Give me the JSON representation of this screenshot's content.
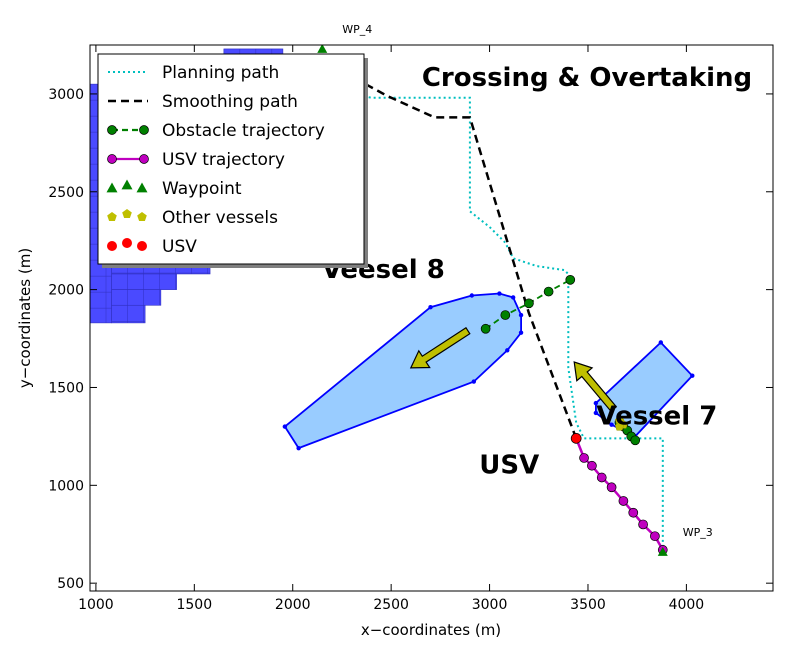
{
  "chart_data": {
    "type": "scatter",
    "title": "Crossing & Overtaking",
    "xlabel": "x−coordinates (m)",
    "ylabel": "y−coordinates (m)",
    "xlim": [
      970,
      4440
    ],
    "ylim": [
      460,
      3250
    ],
    "xticks": [
      1000,
      1500,
      2000,
      2500,
      3000,
      3500,
      4000
    ],
    "yticks": [
      500,
      1000,
      1500,
      2000,
      2500,
      3000
    ],
    "grid": false,
    "legend_position": "top-left",
    "legend": [
      {
        "label": "Planning path",
        "style": "dotted",
        "color": "#00bfbf"
      },
      {
        "label": "Smoothing path",
        "style": "dashed",
        "color": "#000000"
      },
      {
        "label": "Obstacle trajectory",
        "style": "dash-dot-marker",
        "color": "#008000"
      },
      {
        "label": "USV trajectory",
        "style": "line-marker",
        "color": "#bf00bf"
      },
      {
        "label": "Waypoint",
        "style": "triangle",
        "color": "#008000"
      },
      {
        "label": "Other vessels",
        "style": "pentagon",
        "color": "#bfbf00"
      },
      {
        "label": "USV",
        "style": "circle",
        "color": "#ff0000"
      }
    ],
    "colors": {
      "planning": "#00bfbf",
      "smoothing": "#000000",
      "obstacle": "#008000",
      "usv": "#bf00bf",
      "vessel_fill": "#99ccff",
      "vessel_edge": "#0000ff",
      "grid_cells": "#4a4aff",
      "arrow": "#bfbf00"
    },
    "planning_path": [
      [
        3880,
        660
      ],
      [
        3880,
        1240
      ],
      [
        3480,
        1240
      ],
      [
        3440,
        1320
      ],
      [
        3400,
        1600
      ],
      [
        3400,
        2080
      ],
      [
        3380,
        2100
      ],
      [
        3240,
        2120
      ],
      [
        3120,
        2160
      ],
      [
        3080,
        2240
      ],
      [
        3000,
        2320
      ],
      [
        2900,
        2400
      ],
      [
        2900,
        2980
      ],
      [
        2400,
        2980
      ],
      [
        2220,
        3020
      ],
      [
        1980,
        3180
      ]
    ],
    "smoothing_path": [
      [
        3440,
        1240
      ],
      [
        3200,
        1880
      ],
      [
        2900,
        2880
      ],
      [
        2720,
        2880
      ],
      [
        2480,
        2990
      ],
      [
        2260,
        3110
      ],
      [
        2160,
        3200
      ]
    ],
    "obstacle_trajectory": [
      [
        2980,
        1800
      ],
      [
        3080,
        1870
      ],
      [
        3200,
        1930
      ],
      [
        3300,
        1990
      ],
      [
        3410,
        2050
      ]
    ],
    "obstacle_trajectory_2": [
      [
        3660,
        1320
      ],
      [
        3680,
        1300
      ],
      [
        3700,
        1280
      ],
      [
        3720,
        1250
      ],
      [
        3740,
        1230
      ]
    ],
    "usv_trajectory": [
      [
        3880,
        670
      ],
      [
        3840,
        740
      ],
      [
        3780,
        800
      ],
      [
        3730,
        860
      ],
      [
        3680,
        920
      ],
      [
        3620,
        990
      ],
      [
        3570,
        1040
      ],
      [
        3520,
        1100
      ],
      [
        3480,
        1140
      ],
      [
        3440,
        1240
      ]
    ],
    "waypoints": [
      {
        "name": "WP_3",
        "x": 3880,
        "y": 660
      },
      {
        "name": "WP_4",
        "x": 2150,
        "y": 3230
      }
    ],
    "other_vessels": [
      {
        "x": 3660,
        "y": 1330
      },
      {
        "x": 3680,
        "y": 1310
      },
      {
        "x": 3660,
        "y": 1300
      }
    ],
    "usv_position": {
      "x": 3440,
      "y": 1240
    },
    "vessels": [
      {
        "name": "Veesel 8",
        "polygon": [
          [
            1960,
            1300
          ],
          [
            2030,
            1190
          ],
          [
            2920,
            1530
          ],
          [
            3090,
            1690
          ],
          [
            3160,
            1780
          ],
          [
            3160,
            1870
          ],
          [
            3120,
            1960
          ],
          [
            3050,
            1980
          ],
          [
            2910,
            1970
          ],
          [
            2700,
            1910
          ],
          [
            1960,
            1300
          ]
        ],
        "heading": [
          [
            2890,
            1790
          ],
          [
            2600,
            1600
          ]
        ]
      },
      {
        "name": "Vessel 7",
        "polygon": [
          [
            3540,
            1370
          ],
          [
            3620,
            1310
          ],
          [
            3740,
            1250
          ],
          [
            4030,
            1560
          ],
          [
            3870,
            1730
          ],
          [
            3540,
            1420
          ],
          [
            3540,
            1370
          ]
        ],
        "heading": [
          [
            3630,
            1390
          ],
          [
            3430,
            1630
          ]
        ]
      }
    ],
    "grid_cells": [
      [
        970,
        1080,
        1830,
        3050
      ],
      [
        1080,
        1580,
        2080,
        2330
      ],
      [
        1080,
        1410,
        2000,
        2080
      ],
      [
        1080,
        1330,
        1920,
        2000
      ],
      [
        1080,
        1250,
        1830,
        1920
      ],
      [
        1080,
        1580,
        2330,
        2580
      ],
      [
        1080,
        1240,
        2580,
        2920
      ],
      [
        1650,
        1950,
        3050,
        3230
      ]
    ],
    "annotations": [
      {
        "text": "Veesel 8",
        "x": 2460,
        "y": 2060
      },
      {
        "text": "Vessel 7",
        "x": 3850,
        "y": 1310
      },
      {
        "text": "USV",
        "x": 3100,
        "y": 1060
      }
    ]
  }
}
